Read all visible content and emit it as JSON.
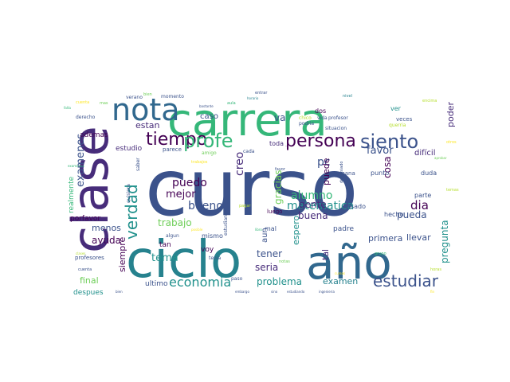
{
  "palette": {
    "navy": "#3b528b",
    "purple": "#472c7a",
    "deep": "#440154",
    "teal": "#21918c",
    "teal2": "#26828e",
    "blue": "#31688e",
    "green": "#35b779",
    "lime": "#6ece58",
    "yellow": "#b5de2b",
    "gold": "#fde725"
  },
  "words": [
    {
      "text": "curso",
      "color": "#3b528b"
    },
    {
      "text": "carrera",
      "color": "#35b779"
    },
    {
      "text": "clase",
      "color": "#472c7a"
    },
    {
      "text": "ciclo",
      "color": "#26828e"
    },
    {
      "text": "año",
      "color": "#31688e"
    },
    {
      "text": "nota",
      "color": "#31688e"
    },
    {
      "text": "tiempo",
      "color": "#440154"
    },
    {
      "text": "profe",
      "color": "#35b779"
    },
    {
      "text": "persona",
      "color": "#440154"
    },
    {
      "text": "siento",
      "color": "#3b528b"
    },
    {
      "text": "verdad",
      "color": "#21918c"
    },
    {
      "text": "estudiar",
      "color": "#3b528b"
    },
    {
      "text": "economia",
      "color": "#21918c"
    },
    {
      "text": "examenes",
      "color": "#3b528b"
    },
    {
      "text": "bueno",
      "color": "#3b528b"
    },
    {
      "text": "puedo",
      "color": "#440154"
    },
    {
      "text": "creo",
      "color": "#472c7a"
    },
    {
      "text": "alumno",
      "color": "#35b779"
    },
    {
      "text": "matematica",
      "color": "#21918c"
    },
    {
      "text": "pc",
      "color": "#3b528b"
    },
    {
      "text": "persona",
      "color": "#440154"
    },
    {
      "text": "favor",
      "color": "#3b528b"
    },
    {
      "text": "va",
      "color": "#3b528b"
    },
    {
      "text": "dia",
      "color": "#440154"
    },
    {
      "text": "mejor",
      "color": "#440154"
    },
    {
      "text": "trabajo",
      "color": "#6ece58"
    },
    {
      "text": "menos",
      "color": "#3b528b"
    },
    {
      "text": "ayuda",
      "color": "#440154"
    },
    {
      "text": "tema",
      "color": "#21918c"
    },
    {
      "text": "siempre",
      "color": "#440154"
    },
    {
      "text": "final",
      "color": "#6ece58"
    },
    {
      "text": "problema",
      "color": "#21918c"
    },
    {
      "text": "examen",
      "color": "#26828e"
    },
    {
      "text": "pregunta",
      "color": "#21918c"
    },
    {
      "text": "poder",
      "color": "#472c7a"
    },
    {
      "text": "cosa",
      "color": "#440154"
    },
    {
      "text": "tener",
      "color": "#3b528b"
    },
    {
      "text": "seria",
      "color": "#472c7a"
    },
    {
      "text": "buena",
      "color": "#472c7a"
    },
    {
      "text": "gente",
      "color": "#472c7a"
    },
    {
      "text": "gracias",
      "color": "#6ece58"
    },
    {
      "text": "puede",
      "color": "#440154"
    },
    {
      "text": "pueda",
      "color": "#3b528b"
    },
    {
      "text": "llevar",
      "color": "#3b528b"
    },
    {
      "text": "primera",
      "color": "#3b528b"
    },
    {
      "text": "espero",
      "color": "#21918c"
    },
    {
      "text": "tal",
      "color": "#472c7a"
    },
    {
      "text": "estan",
      "color": "#472c7a"
    },
    {
      "text": "ademas",
      "color": "#440154"
    },
    {
      "text": "estudio",
      "color": "#472c7a"
    },
    {
      "text": "caso",
      "color": "#3b528b"
    },
    {
      "text": "difícil",
      "color": "#472c7a"
    },
    {
      "text": "parcial",
      "color": "#472c7a"
    },
    {
      "text": "hecho",
      "color": "#3b528b"
    },
    {
      "text": "aun",
      "color": "#3b528b"
    },
    {
      "text": "mismo",
      "color": "#3b528b"
    },
    {
      "text": "voy",
      "color": "#440154"
    },
    {
      "text": "tan",
      "color": "#440154"
    },
    {
      "text": "ultimo",
      "color": "#3b528b"
    },
    {
      "text": "despues",
      "color": "#21918c"
    },
    {
      "text": "profesores",
      "color": "#3b528b"
    },
    {
      "text": "porfavor",
      "color": "#440154"
    },
    {
      "text": "realmente",
      "color": "#35b779"
    },
    {
      "text": "quisiera",
      "color": "#3b528b"
    },
    {
      "text": "padre",
      "color": "#3b528b"
    },
    {
      "text": "luego",
      "color": "#440154"
    },
    {
      "text": "mal",
      "color": "#3b528b"
    },
    {
      "text": "pasado",
      "color": "#3b528b"
    },
    {
      "text": "punto",
      "color": "#3b528b"
    },
    {
      "text": "duda",
      "color": "#3b528b"
    },
    {
      "text": "parte",
      "color": "#3b528b"
    },
    {
      "text": "semana",
      "color": "#3b528b"
    },
    {
      "text": "veces",
      "color": "#3b528b"
    },
    {
      "text": "vida",
      "color": "#3b528b"
    },
    {
      "text": "dos",
      "color": "#440154"
    },
    {
      "text": "ver",
      "color": "#21918c"
    },
    {
      "text": "toda",
      "color": "#472c7a"
    },
    {
      "text": "momento",
      "color": "#3b528b"
    },
    {
      "text": "verano",
      "color": "#3b528b"
    },
    {
      "text": "derecho",
      "color": "#3b528b"
    },
    {
      "text": "parece",
      "color": "#3b528b"
    },
    {
      "text": "estudiante",
      "color": "#3b528b"
    },
    {
      "text": "situacion",
      "color": "#3b528b"
    },
    {
      "text": "podria",
      "color": "#3b528b"
    },
    {
      "text": "chico",
      "color": "#b5de2b"
    },
    {
      "text": "profesor",
      "color": "#3b528b"
    },
    {
      "text": "querria",
      "color": "#b5de2b"
    },
    {
      "text": "demasiado",
      "color": "#3b528b"
    },
    {
      "text": "paso",
      "color": "#3b528b"
    },
    {
      "text": "cuenta",
      "color": "#3b528b"
    },
    {
      "text": "tenia",
      "color": "#3b528b"
    },
    {
      "text": "algun",
      "color": "#3b528b"
    },
    {
      "text": "saber",
      "color": "#3b528b"
    },
    {
      "text": "cada",
      "color": "#3b528b"
    },
    {
      "text": "amigo",
      "color": "#6ece58"
    },
    {
      "text": "favor",
      "color": "#3b528b"
    }
  ]
}
